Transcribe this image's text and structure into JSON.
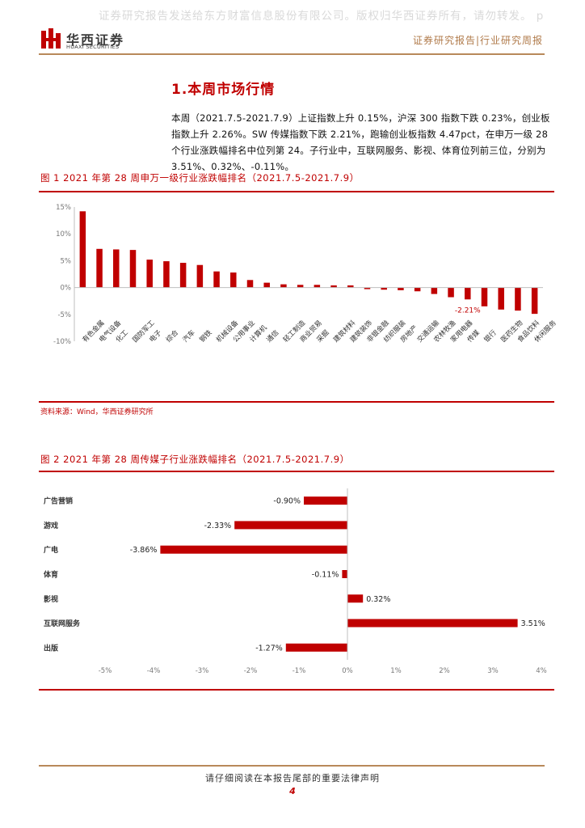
{
  "watermark": "证券研究报告发送给东方财富信息股份有限公司。版权归华西证券所有，请勿转发。 p",
  "brand": {
    "name_cn": "华西证券",
    "name_en": "HUAXI SECURITIES",
    "color": "#c00000"
  },
  "header": {
    "right_text": "证券研究报告|行业研究周报"
  },
  "section": {
    "title": "1.本周市场行情",
    "paragraph": "本周（2021.7.5-2021.7.9）上证指数上升 0.15%，沪深 300 指数下跌 0.23%，创业板指数上升 2.26%。SW 传媒指数下跌 2.21%，跑输创业板指数 4.47pct，在申万一级 28 个行业涨跌幅排名中位列第 24。子行业中，互联网服务、影视、体育位列前三位，分别为 3.51%、0.32%、-0.11%。"
  },
  "figure1": {
    "title": "图 1 2021 年第 28 周申万一级行业涨跌幅排名（2021.7.5-2021.7.9）",
    "source": "资料来源：Wind，华西证券研究所"
  },
  "figure2": {
    "title": "图 2 2021 年第 28 周传媒子行业涨跌幅排名（2021.7.5-2021.7.9）"
  },
  "chart_data": [
    {
      "type": "bar",
      "categories": [
        "有色金属",
        "电气设备",
        "化工",
        "国防军工",
        "电子",
        "综合",
        "汽车",
        "钢铁",
        "机械设备",
        "公用事业",
        "计算机",
        "通信",
        "轻工制造",
        "商业贸易",
        "采掘",
        "建筑材料",
        "建筑装饰",
        "非银金融",
        "纺织服装",
        "房地产",
        "交通运输",
        "农林牧渔",
        "家用电器",
        "传媒",
        "银行",
        "医药生物",
        "食品饮料",
        "休闲服务"
      ],
      "values": [
        14.2,
        7.2,
        7.1,
        7.0,
        5.2,
        4.9,
        4.6,
        4.2,
        3.0,
        2.8,
        1.4,
        0.9,
        0.6,
        0.5,
        0.5,
        0.4,
        0.4,
        -0.3,
        -0.4,
        -0.5,
        -0.7,
        -1.2,
        -1.8,
        -2.21,
        -3.5,
        -4.1,
        -4.3,
        -4.9
      ],
      "annotation": {
        "category": "传媒",
        "label": "-2.21%"
      },
      "yticks": [
        "15%",
        "10%",
        "5%",
        "0%",
        "-5%",
        "-10%"
      ],
      "ylim": [
        -10,
        15
      ],
      "color": "#c00000",
      "grid": false
    },
    {
      "type": "bar",
      "orientation": "horizontal",
      "categories": [
        "广告营销",
        "游戏",
        "广电",
        "体育",
        "影视",
        "互联网服务",
        "出版"
      ],
      "values": [
        -0.9,
        -2.33,
        -3.86,
        -0.11,
        0.32,
        3.51,
        -1.27
      ],
      "labels": [
        "-0.90%",
        "-2.33%",
        "-3.86%",
        "-0.11%",
        "0.32%",
        "3.51%",
        "-1.27%"
      ],
      "xticks": [
        "-5%",
        "-4%",
        "-3%",
        "-2%",
        "-1%",
        "0%",
        "1%",
        "2%",
        "3%",
        "4%"
      ],
      "xlim": [
        -5,
        4
      ],
      "color": "#c00000",
      "grid": false
    }
  ],
  "footer": {
    "text": "请仔细阅读在本报告尾部的重要法律声明",
    "page": "4"
  }
}
